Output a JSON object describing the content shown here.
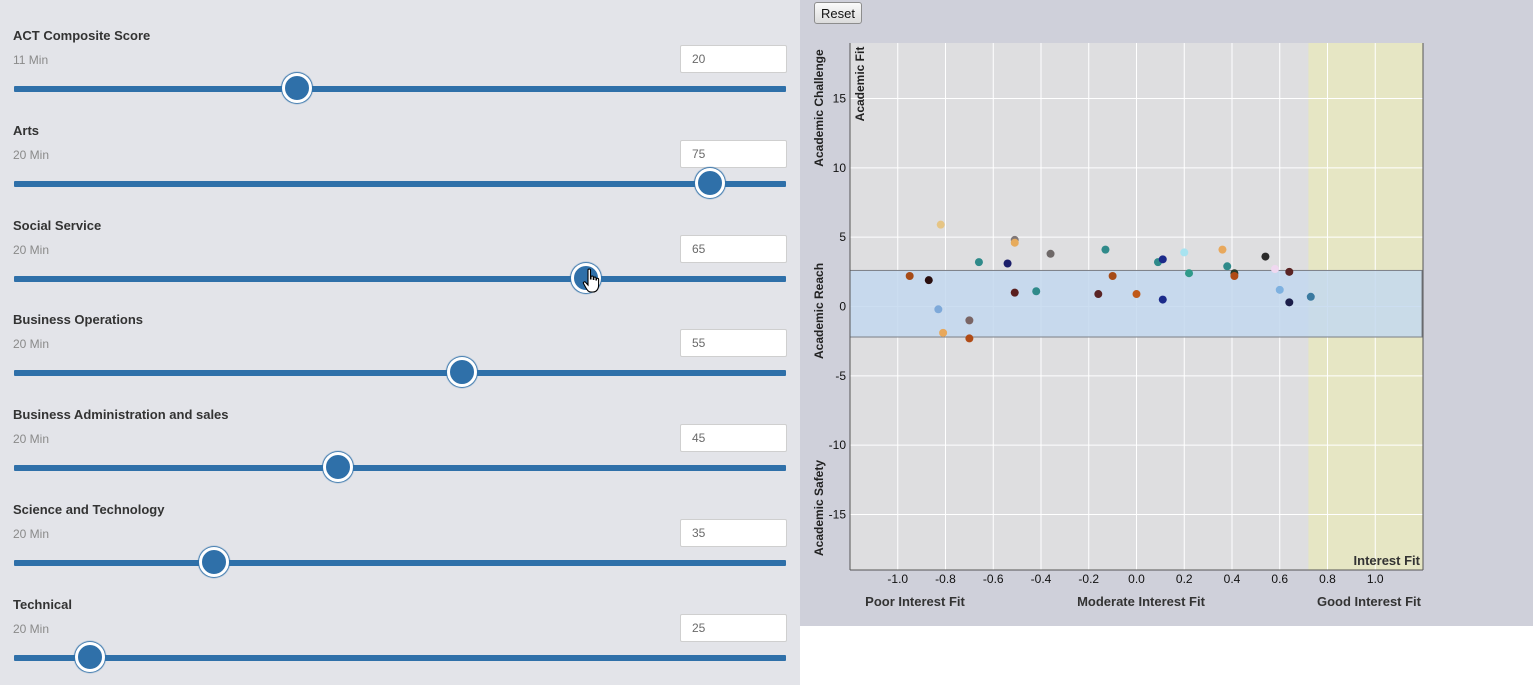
{
  "sliders": [
    {
      "label": "ACT Composite Score",
      "min_label": "11 Min",
      "value": "20",
      "fraction": 0.366
    },
    {
      "label": "Arts",
      "min_label": "20 Min",
      "value": "75",
      "fraction": 0.901
    },
    {
      "label": "Social Service",
      "min_label": "20 Min",
      "value": "65",
      "fraction": 0.741
    },
    {
      "label": "Business Operations",
      "min_label": "20 Min",
      "value": "55",
      "fraction": 0.58
    },
    {
      "label": "Business Administration and sales",
      "min_label": "20 Min",
      "value": "45",
      "fraction": 0.42
    },
    {
      "label": "Science and Technology",
      "min_label": "20 Min",
      "value": "35",
      "fraction": 0.259
    },
    {
      "label": "Technical",
      "min_label": "20 Min",
      "value": "25",
      "fraction": 0.098
    }
  ],
  "reset_label": "Reset",
  "chart_data": {
    "type": "scatter",
    "xlim": [
      -1.2,
      1.2
    ],
    "ylim": [
      -19,
      19
    ],
    "x_ticks": [
      "-1.0",
      "-0.8",
      "-0.6",
      "-0.4",
      "-0.2",
      "0.0",
      "0.2",
      "0.4",
      "0.6",
      "0.8",
      "1.0"
    ],
    "x_tick_values": [
      -1.0,
      -0.8,
      -0.6,
      -0.4,
      -0.2,
      0.0,
      0.2,
      0.4,
      0.6,
      0.8,
      1.0
    ],
    "y_ticks": [
      "15",
      "10",
      "5",
      "0",
      "-5",
      "-10",
      "-15"
    ],
    "y_tick_values": [
      15,
      10,
      5,
      0,
      -5,
      -10,
      -15
    ],
    "grid": true,
    "reach_band": [
      -2.2,
      2.6
    ],
    "interest_fit_region_start": 0.72,
    "vertical_labels": {
      "challenge": "Academic Challenge",
      "reach": "Academic Reach",
      "safety": "Academic Safety",
      "fit": "Academic Fit"
    },
    "interest_fit_label": "Interest Fit",
    "bottom_labels": [
      "Poor Interest Fit",
      "Moderate Interest Fit",
      "Good Interest Fit"
    ],
    "colors": {
      "plot_bg": "#dedee0",
      "band": "#c3d8ee",
      "interest_region": "#e6e6c4"
    },
    "points": [
      {
        "x": -0.95,
        "y": 2.2,
        "color": "#a64b17"
      },
      {
        "x": -0.87,
        "y": 1.9,
        "color": "#2a0f0f"
      },
      {
        "x": -0.82,
        "y": 5.9,
        "color": "#e6c585"
      },
      {
        "x": -0.83,
        "y": -0.2,
        "color": "#7ea9d9"
      },
      {
        "x": -0.81,
        "y": -1.9,
        "color": "#e8a85c"
      },
      {
        "x": -0.7,
        "y": -1.0,
        "color": "#7a6565"
      },
      {
        "x": -0.7,
        "y": -2.3,
        "color": "#b04b16"
      },
      {
        "x": -0.66,
        "y": 3.2,
        "color": "#2f8a8a"
      },
      {
        "x": -0.54,
        "y": 3.1,
        "color": "#1b1e6a"
      },
      {
        "x": -0.51,
        "y": 4.8,
        "color": "#807878"
      },
      {
        "x": -0.51,
        "y": 4.6,
        "color": "#e7ab5c"
      },
      {
        "x": -0.51,
        "y": 1.0,
        "color": "#5a1e1e"
      },
      {
        "x": -0.42,
        "y": 1.1,
        "color": "#2f8a8a"
      },
      {
        "x": -0.36,
        "y": 3.8,
        "color": "#6e6868"
      },
      {
        "x": -0.16,
        "y": 0.9,
        "color": "#5a2424"
      },
      {
        "x": -0.13,
        "y": 4.1,
        "color": "#2f8a8a"
      },
      {
        "x": -0.1,
        "y": 2.2,
        "color": "#a64b17"
      },
      {
        "x": 0.0,
        "y": 0.9,
        "color": "#c05817"
      },
      {
        "x": 0.09,
        "y": 3.2,
        "color": "#2f8a8a"
      },
      {
        "x": 0.11,
        "y": 3.4,
        "color": "#1b2a8a"
      },
      {
        "x": 0.11,
        "y": 0.5,
        "color": "#1b2a8a"
      },
      {
        "x": 0.2,
        "y": 3.9,
        "color": "#a8e3f0"
      },
      {
        "x": 0.22,
        "y": 2.4,
        "color": "#2f9a8a"
      },
      {
        "x": 0.36,
        "y": 4.1,
        "color": "#e8a85c"
      },
      {
        "x": 0.38,
        "y": 2.9,
        "color": "#2f8a8a"
      },
      {
        "x": 0.41,
        "y": 2.4,
        "color": "#2a3a2a"
      },
      {
        "x": 0.41,
        "y": 2.2,
        "color": "#b04b16"
      },
      {
        "x": 0.54,
        "y": 3.6,
        "color": "#2a2a2a"
      },
      {
        "x": 0.58,
        "y": 2.7,
        "color": "#f0d8f0"
      },
      {
        "x": 0.64,
        "y": 2.5,
        "color": "#5a2424"
      },
      {
        "x": 0.6,
        "y": 1.2,
        "color": "#7eb1e0"
      },
      {
        "x": 0.64,
        "y": 0.3,
        "color": "#1b1e4a"
      },
      {
        "x": 0.73,
        "y": 0.7,
        "color": "#3a7aa0"
      }
    ]
  }
}
